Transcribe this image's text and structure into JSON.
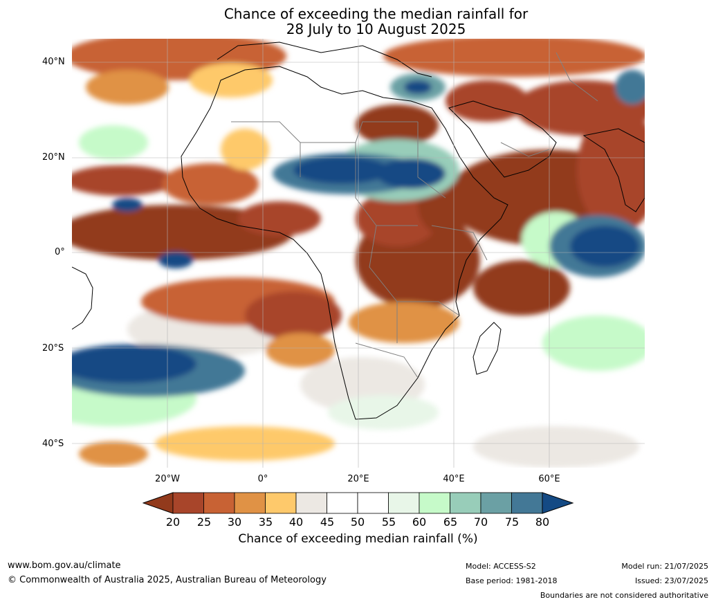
{
  "title_line1": "Chance of exceeding the median rainfall for",
  "title_line2": "28 July to 10 August 2025",
  "map": {
    "latitude_labels": [
      "40°N",
      "20°N",
      "0°",
      "20°S",
      "40°S"
    ],
    "longitude_labels": [
      "20°W",
      "0°",
      "20°E",
      "40°E",
      "60°E"
    ],
    "colors": {
      "ocean_white": "#ffffff",
      "land_outline": "#000000",
      "country_border": "#808080"
    }
  },
  "colorbar": {
    "ticks": [
      "20",
      "25",
      "30",
      "35",
      "40",
      "45",
      "50",
      "55",
      "60",
      "65",
      "70",
      "75",
      "80"
    ],
    "bins": [
      {
        "range": "<20",
        "color": "#923a1c"
      },
      {
        "range": "20-25",
        "color": "#a8452a"
      },
      {
        "range": "25-30",
        "color": "#c86234"
      },
      {
        "range": "30-35",
        "color": "#e09245"
      },
      {
        "range": "35-40",
        "color": "#fec96b"
      },
      {
        "range": "40-45",
        "color": "#ece8e3"
      },
      {
        "range": "45-50",
        "color": "#ffffff"
      },
      {
        "range": "50-55",
        "color": "#ffffff"
      },
      {
        "range": "55-60",
        "color": "#e8f6e8"
      },
      {
        "range": "60-65",
        "color": "#c6fac9"
      },
      {
        "range": "65-70",
        "color": "#98cdb9"
      },
      {
        "range": "70-75",
        "color": "#6ba0a4"
      },
      {
        "range": "75-80",
        "color": "#437896"
      },
      {
        "range": ">80",
        "color": "#144a84"
      }
    ],
    "label": "Chance of exceeding median rainfall (%)"
  },
  "footer": {
    "website": "www.bom.gov.au/climate",
    "copyright": "© Commonwealth of Australia 2025, Australian Bureau of Meteorology",
    "model": "Model: ACCESS-S2",
    "base_period": "Base period: 1981-2018",
    "model_run": "Model run: 21/07/2025",
    "issued": "Issued: 23/07/2025",
    "disclaimer": "Boundaries are not considered authoritative"
  }
}
